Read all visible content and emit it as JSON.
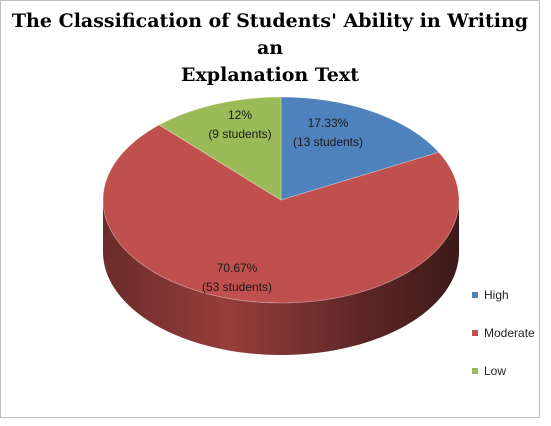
{
  "chart_data": {
    "type": "pie",
    "title_lines": [
      "The Classification of Students' Ability in Writing an",
      "Explanation Text"
    ],
    "slices": [
      {
        "name": "High",
        "percent": 17.33,
        "label_line1": "17.33%",
        "label_line2": "(13 students)",
        "color": "#4f81bd"
      },
      {
        "name": "Moderate",
        "percent": 70.67,
        "label_line1": "70.67%",
        "label_line2": "(53 students)",
        "color": "#c0504d"
      },
      {
        "name": "Low",
        "percent": 12,
        "label_line1": "12%",
        "label_line2": "(9 students)",
        "color": "#9bbb59"
      }
    ],
    "legend_position": "right"
  }
}
